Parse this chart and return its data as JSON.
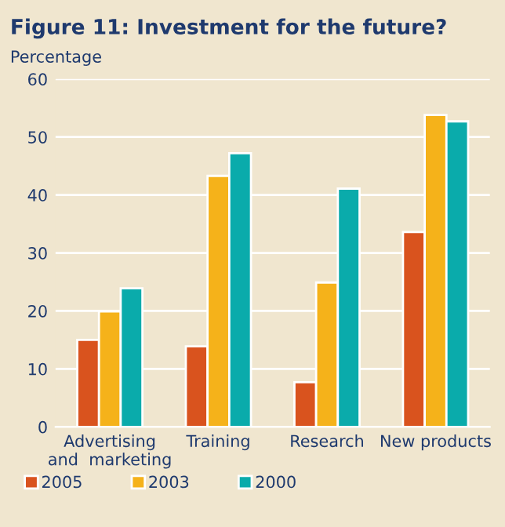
{
  "chart_data": {
    "type": "bar",
    "title": "Figure 11: Investment for the future?",
    "ylabel": "Percentage",
    "categories": [
      "Advertising\nand  marketing",
      "Training",
      "Research",
      "New products"
    ],
    "series": [
      {
        "name": "2005",
        "color": "#d9531e",
        "values": [
          15,
          13.9,
          7.7,
          33.6
        ]
      },
      {
        "name": "2003",
        "color": "#f5b21a",
        "values": [
          19.9,
          43.3,
          24.9,
          53.8
        ]
      },
      {
        "name": "2000",
        "color": "#0aabab",
        "values": [
          23.9,
          47.2,
          41.1,
          52.7
        ]
      }
    ],
    "ylim": [
      0,
      60
    ],
    "yticks": [
      0,
      10,
      20,
      30,
      40,
      50,
      60
    ],
    "grid": "y",
    "legend": "bottom left"
  }
}
